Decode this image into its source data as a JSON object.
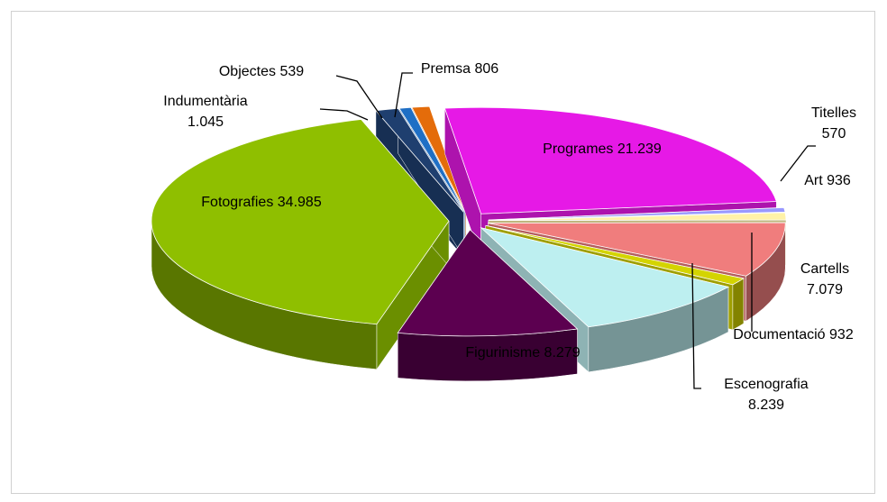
{
  "chart_data": {
    "type": "pie3d",
    "categories": [
      "Programes",
      "Titelles",
      "Art",
      "Cartells",
      "Documentació",
      "Escenografia",
      "Figurinisme",
      "Fotografies",
      "Indumentària",
      "Objectes",
      "Premsa"
    ],
    "values": [
      21239,
      570,
      936,
      7079,
      932,
      8239,
      8279,
      34985,
      1045,
      539,
      806
    ],
    "value_labels": [
      "21.239",
      "570",
      "936",
      "7.079",
      "932",
      "8.239",
      "8.279",
      "34.985",
      "1.045",
      "539",
      "806"
    ],
    "colors": [
      "#e619e6",
      "#9999ff",
      "#fff2a8",
      "#f07d7d",
      "#d4d400",
      "#bdeff0",
      "#5c0050",
      "#8fbf00",
      "#1f3f6f",
      "#1f6fc5",
      "#e46c0a"
    ]
  }
}
